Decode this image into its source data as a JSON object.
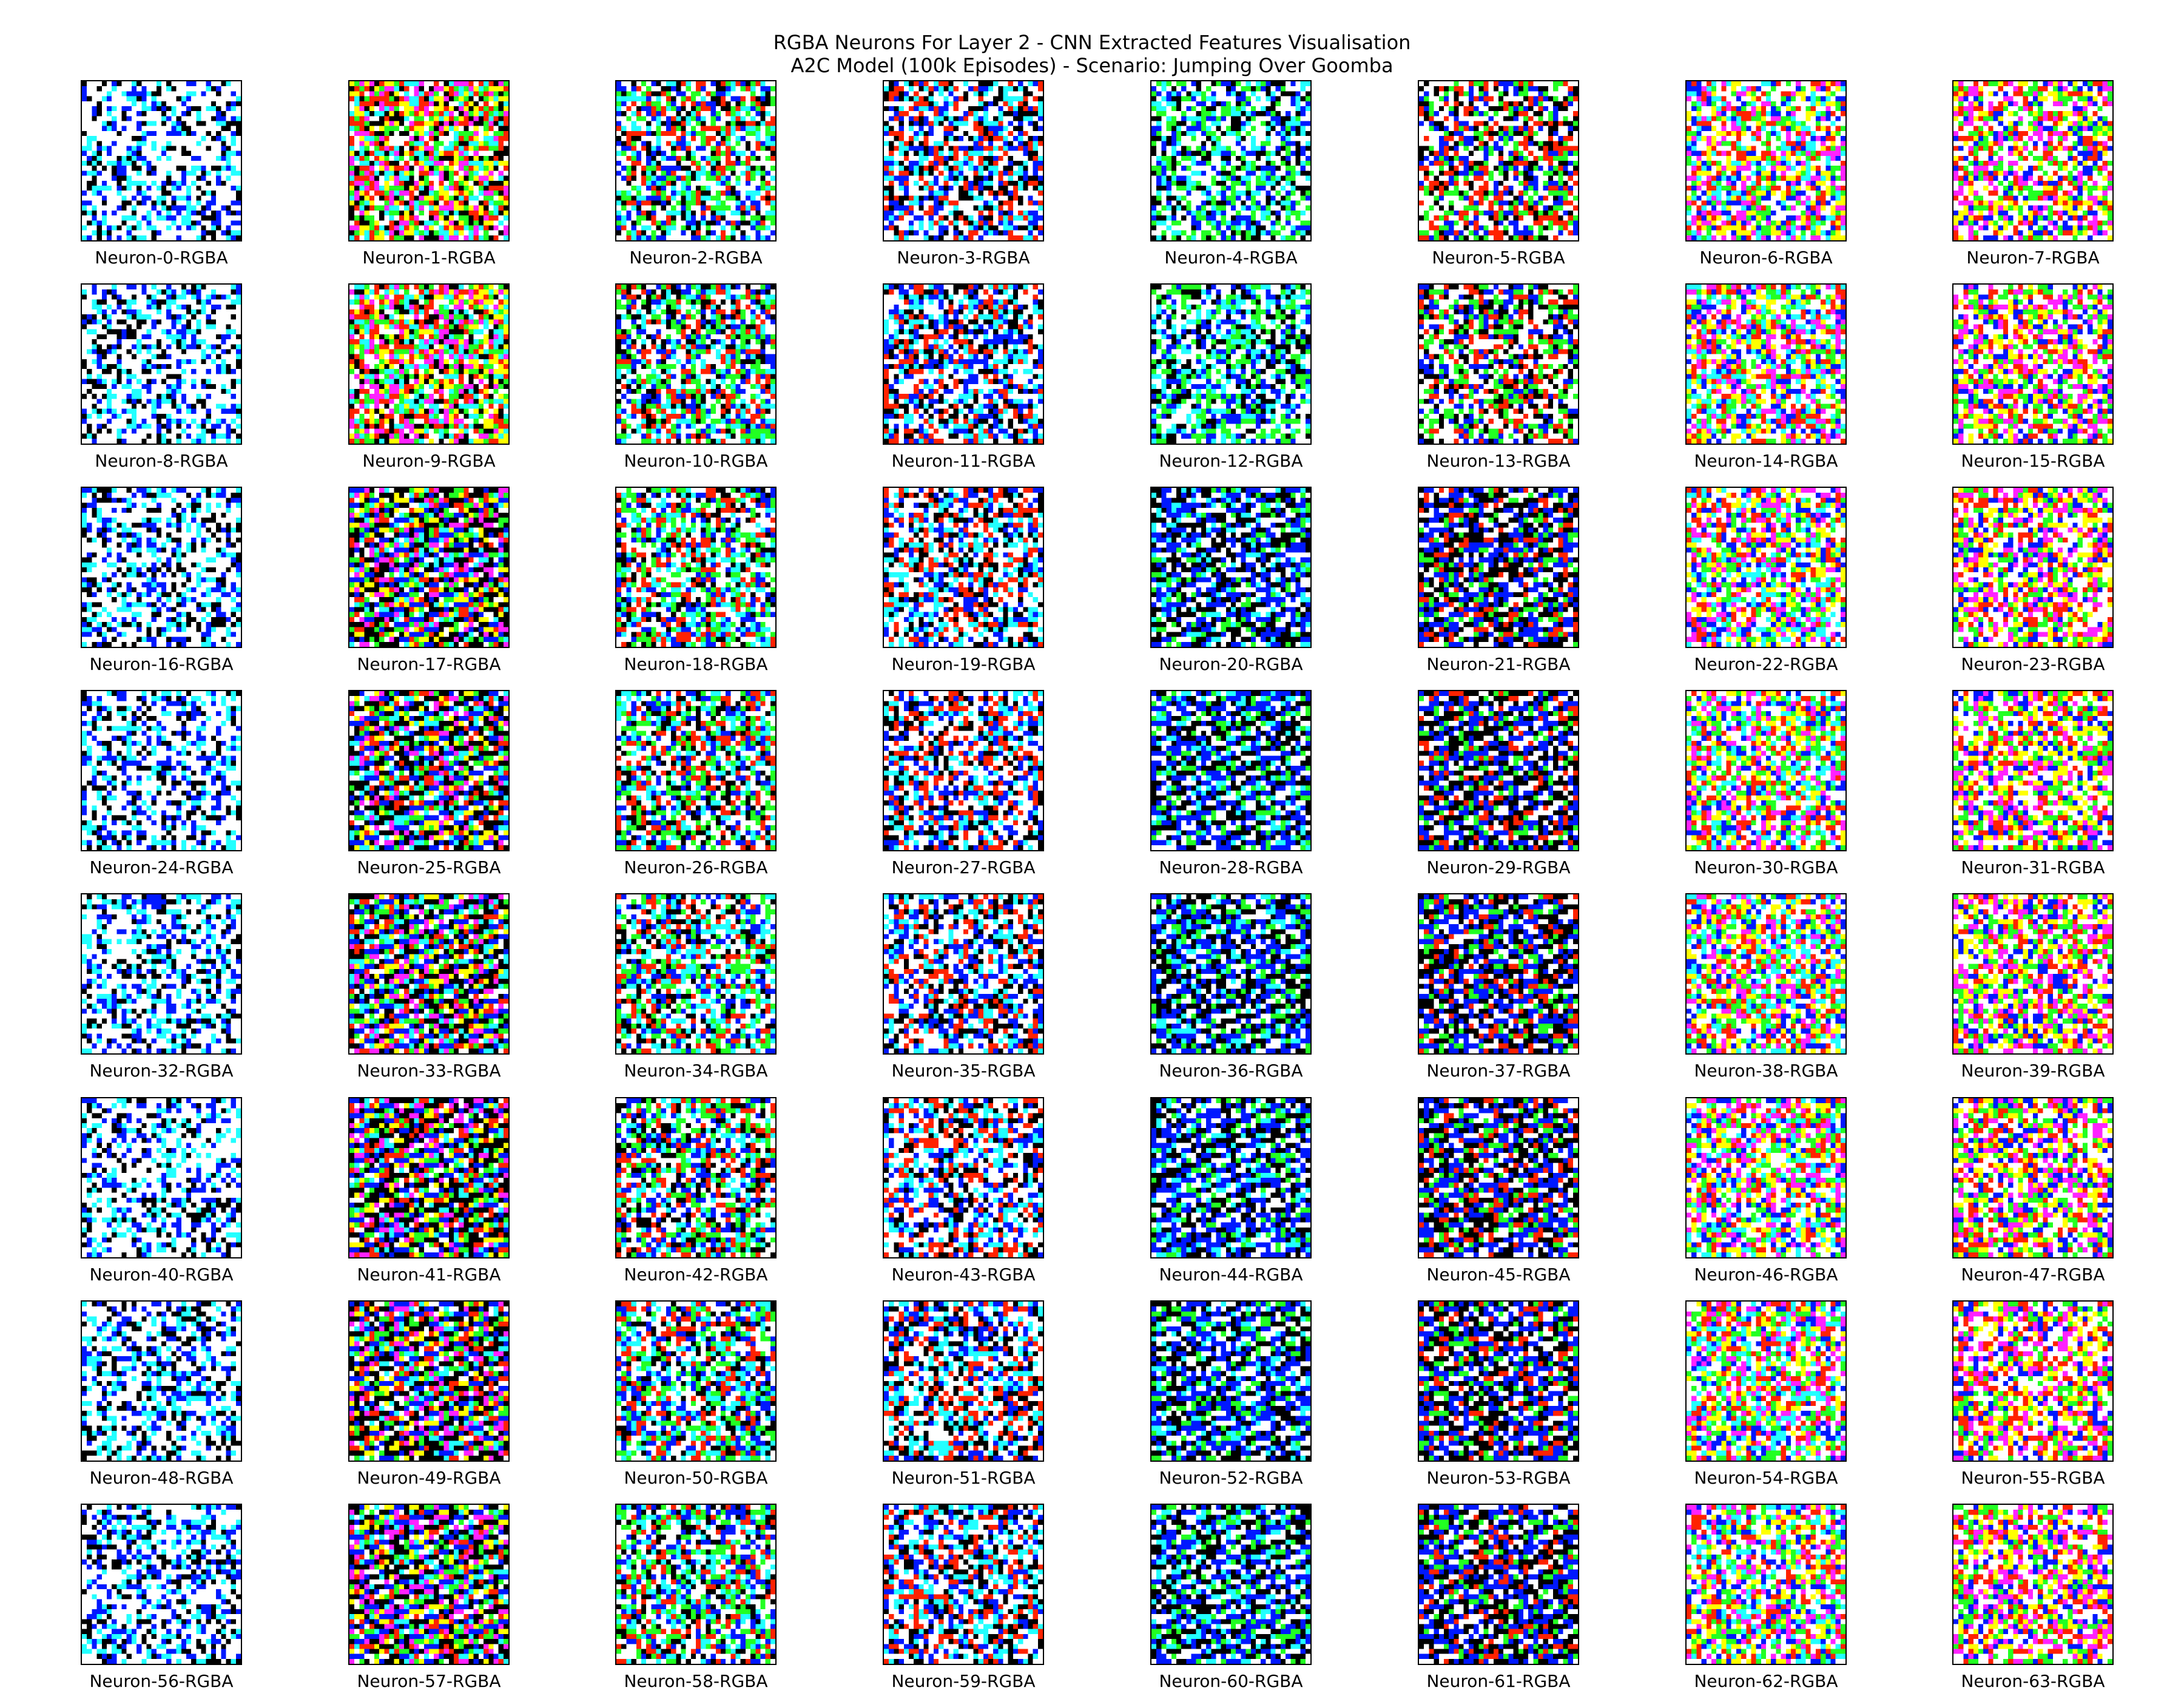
{
  "figure": {
    "title_line_1": "RGBA Neurons For Layer 2 - CNN Extracted Features Visualisation",
    "title_line_2": "A2C Model (100k Episodes) - Scenario: Jumping Over Goomba"
  },
  "panels": [
    {
      "label": "Neuron-0-RGBA"
    },
    {
      "label": "Neuron-1-RGBA"
    },
    {
      "label": "Neuron-2-RGBA"
    },
    {
      "label": "Neuron-3-RGBA"
    },
    {
      "label": "Neuron-4-RGBA"
    },
    {
      "label": "Neuron-5-RGBA"
    },
    {
      "label": "Neuron-6-RGBA"
    },
    {
      "label": "Neuron-7-RGBA"
    },
    {
      "label": "Neuron-8-RGBA"
    },
    {
      "label": "Neuron-9-RGBA"
    },
    {
      "label": "Neuron-10-RGBA"
    },
    {
      "label": "Neuron-11-RGBA"
    },
    {
      "label": "Neuron-12-RGBA"
    },
    {
      "label": "Neuron-13-RGBA"
    },
    {
      "label": "Neuron-14-RGBA"
    },
    {
      "label": "Neuron-15-RGBA"
    },
    {
      "label": "Neuron-16-RGBA"
    },
    {
      "label": "Neuron-17-RGBA"
    },
    {
      "label": "Neuron-18-RGBA"
    },
    {
      "label": "Neuron-19-RGBA"
    },
    {
      "label": "Neuron-20-RGBA"
    },
    {
      "label": "Neuron-21-RGBA"
    },
    {
      "label": "Neuron-22-RGBA"
    },
    {
      "label": "Neuron-23-RGBA"
    },
    {
      "label": "Neuron-24-RGBA"
    },
    {
      "label": "Neuron-25-RGBA"
    },
    {
      "label": "Neuron-26-RGBA"
    },
    {
      "label": "Neuron-27-RGBA"
    },
    {
      "label": "Neuron-28-RGBA"
    },
    {
      "label": "Neuron-29-RGBA"
    },
    {
      "label": "Neuron-30-RGBA"
    },
    {
      "label": "Neuron-31-RGBA"
    },
    {
      "label": "Neuron-32-RGBA"
    },
    {
      "label": "Neuron-33-RGBA"
    },
    {
      "label": "Neuron-34-RGBA"
    },
    {
      "label": "Neuron-35-RGBA"
    },
    {
      "label": "Neuron-36-RGBA"
    },
    {
      "label": "Neuron-37-RGBA"
    },
    {
      "label": "Neuron-38-RGBA"
    },
    {
      "label": "Neuron-39-RGBA"
    },
    {
      "label": "Neuron-40-RGBA"
    },
    {
      "label": "Neuron-41-RGBA"
    },
    {
      "label": "Neuron-42-RGBA"
    },
    {
      "label": "Neuron-43-RGBA"
    },
    {
      "label": "Neuron-44-RGBA"
    },
    {
      "label": "Neuron-45-RGBA"
    },
    {
      "label": "Neuron-46-RGBA"
    },
    {
      "label": "Neuron-47-RGBA"
    },
    {
      "label": "Neuron-48-RGBA"
    },
    {
      "label": "Neuron-49-RGBA"
    },
    {
      "label": "Neuron-50-RGBA"
    },
    {
      "label": "Neuron-51-RGBA"
    },
    {
      "label": "Neuron-52-RGBA"
    },
    {
      "label": "Neuron-53-RGBA"
    },
    {
      "label": "Neuron-54-RGBA"
    },
    {
      "label": "Neuron-55-RGBA"
    },
    {
      "label": "Neuron-56-RGBA"
    },
    {
      "label": "Neuron-57-RGBA"
    },
    {
      "label": "Neuron-58-RGBA"
    },
    {
      "label": "Neuron-59-RGBA"
    },
    {
      "label": "Neuron-60-RGBA"
    },
    {
      "label": "Neuron-61-RGBA"
    },
    {
      "label": "Neuron-62-RGBA"
    },
    {
      "label": "Neuron-63-RGBA"
    }
  ],
  "palette": {
    "white": "#ffffff",
    "black": "#000000",
    "red": "#ff2200",
    "green": "#22ff22",
    "blue": "#0018ff",
    "cyan": "#22ffff",
    "yellow": "#ffff00",
    "magenta": "#ff22ff"
  }
}
